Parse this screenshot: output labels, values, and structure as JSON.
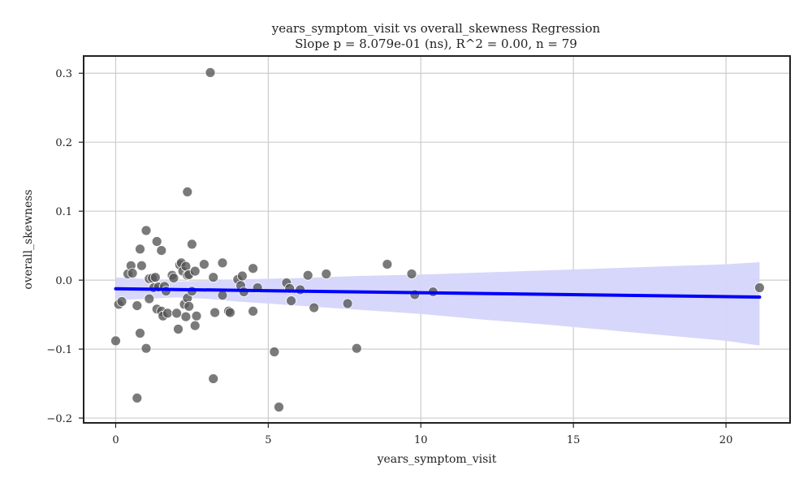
{
  "chart_data": {
    "type": "scatter",
    "title": "years_symptom_visit vs overall_skewness Regression",
    "subtitle": "Slope p = 8.079e-01 (ns), R^2 = 0.00, n = 79",
    "xlabel": "years_symptom_visit",
    "ylabel": "overall_skewness",
    "xlim": [
      -1.05,
      22.1
    ],
    "ylim": [
      -0.207,
      0.325
    ],
    "xticks": [
      0,
      5,
      10,
      15,
      20
    ],
    "yticks": [
      -0.2,
      -0.1,
      0.0,
      0.1,
      0.2,
      0.3
    ],
    "xtick_labels": [
      "0",
      "5",
      "10",
      "15",
      "20"
    ],
    "ytick_labels": [
      "−0.2",
      "−0.1",
      "0.0",
      "0.1",
      "0.2",
      "0.3"
    ],
    "grid": true,
    "colors": {
      "points": "#555555",
      "line": "#0000ff",
      "band": "#d5d5fb"
    },
    "regression": {
      "x": [
        0,
        21.1
      ],
      "y": [
        -0.0125,
        -0.0245
      ]
    },
    "confidence_band": {
      "x": [
        0,
        1,
        2,
        3,
        4,
        5,
        6,
        8,
        10,
        12,
        14,
        16,
        18,
        20,
        21.1
      ],
      "upper": [
        0.0042,
        0.0015,
        -0.002,
        -0.001,
        0.001,
        0.002,
        0.003,
        0.006,
        0.008,
        0.011,
        0.014,
        0.017,
        0.02,
        0.023,
        0.026
      ],
      "lower": [
        -0.0292,
        -0.027,
        -0.025,
        -0.027,
        -0.031,
        -0.034,
        -0.037,
        -0.043,
        -0.049,
        -0.057,
        -0.064,
        -0.072,
        -0.08,
        -0.088,
        -0.095
      ]
    },
    "points": [
      [
        0.0,
        -0.088
      ],
      [
        0.1,
        -0.035
      ],
      [
        0.2,
        -0.031
      ],
      [
        0.4,
        0.009
      ],
      [
        0.5,
        0.021
      ],
      [
        0.55,
        0.01
      ],
      [
        0.7,
        -0.037
      ],
      [
        0.7,
        -0.171
      ],
      [
        0.8,
        0.045
      ],
      [
        0.8,
        -0.077
      ],
      [
        0.85,
        0.021
      ],
      [
        1.0,
        0.072
      ],
      [
        1.0,
        -0.099
      ],
      [
        1.1,
        0.002
      ],
      [
        1.1,
        -0.027
      ],
      [
        1.2,
        0.003
      ],
      [
        1.25,
        -0.011
      ],
      [
        1.3,
        0.004
      ],
      [
        1.35,
        0.056
      ],
      [
        1.35,
        -0.042
      ],
      [
        1.4,
        -0.01
      ],
      [
        1.5,
        -0.045
      ],
      [
        1.5,
        0.043
      ],
      [
        1.55,
        -0.052
      ],
      [
        1.6,
        -0.009
      ],
      [
        1.65,
        -0.016
      ],
      [
        1.7,
        -0.048
      ],
      [
        1.85,
        0.007
      ],
      [
        1.9,
        0.003
      ],
      [
        2.0,
        -0.048
      ],
      [
        2.05,
        -0.071
      ],
      [
        2.1,
        0.022
      ],
      [
        2.15,
        0.025
      ],
      [
        2.2,
        0.013
      ],
      [
        2.25,
        -0.035
      ],
      [
        2.3,
        -0.053
      ],
      [
        2.3,
        0.02
      ],
      [
        2.35,
        0.128
      ],
      [
        2.35,
        0.007
      ],
      [
        2.35,
        -0.026
      ],
      [
        2.4,
        0.008
      ],
      [
        2.4,
        -0.038
      ],
      [
        2.5,
        0.052
      ],
      [
        2.5,
        -0.016
      ],
      [
        2.6,
        -0.066
      ],
      [
        2.6,
        0.013
      ],
      [
        2.65,
        -0.052
      ],
      [
        2.9,
        0.023
      ],
      [
        3.1,
        0.301
      ],
      [
        3.2,
        0.004
      ],
      [
        3.2,
        -0.143
      ],
      [
        3.25,
        -0.047
      ],
      [
        3.5,
        -0.022
      ],
      [
        3.5,
        0.025
      ],
      [
        3.7,
        -0.045
      ],
      [
        3.75,
        -0.047
      ],
      [
        4.0,
        0.001
      ],
      [
        4.1,
        -0.008
      ],
      [
        4.15,
        0.006
      ],
      [
        4.2,
        -0.017
      ],
      [
        4.5,
        0.017
      ],
      [
        4.5,
        -0.045
      ],
      [
        4.65,
        -0.011
      ],
      [
        5.2,
        -0.104
      ],
      [
        5.35,
        -0.184
      ],
      [
        5.6,
        -0.004
      ],
      [
        5.7,
        -0.012
      ],
      [
        5.75,
        -0.03
      ],
      [
        6.05,
        -0.014
      ],
      [
        6.3,
        0.007
      ],
      [
        6.5,
        -0.04
      ],
      [
        6.9,
        0.009
      ],
      [
        7.6,
        -0.034
      ],
      [
        7.9,
        -0.099
      ],
      [
        8.9,
        0.023
      ],
      [
        9.7,
        0.009
      ],
      [
        9.8,
        -0.021
      ],
      [
        10.4,
        -0.017
      ],
      [
        21.1,
        -0.011
      ]
    ]
  }
}
